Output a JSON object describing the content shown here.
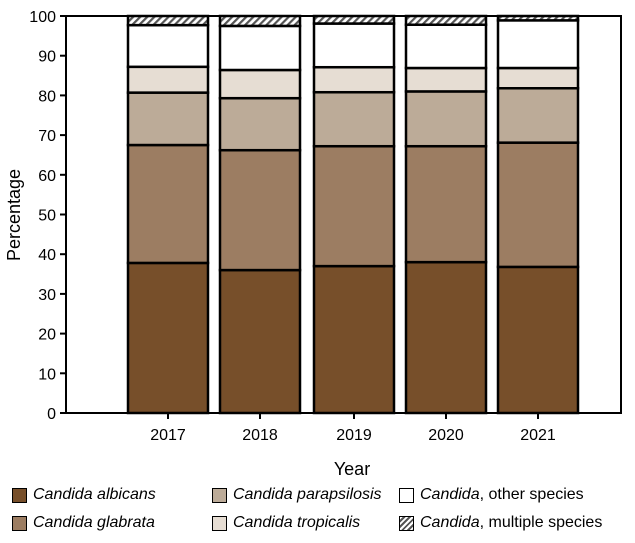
{
  "chart_data": {
    "type": "bar",
    "stacked": true,
    "xlabel": "Year",
    "ylabel": "Percentage",
    "ylim": [
      0,
      100
    ],
    "yticks": [
      0,
      10,
      20,
      30,
      40,
      50,
      60,
      70,
      80,
      90,
      100
    ],
    "categories": [
      "2017",
      "2018",
      "2019",
      "2020",
      "2021"
    ],
    "legend_position": "bottom",
    "grid": false,
    "series": [
      {
        "name": "Candida albicans",
        "name_italic": "Candida albicans",
        "name_rest": "",
        "color": "#774f2a",
        "values": [
          37.8,
          36.0,
          37.0,
          38.0,
          36.8
        ]
      },
      {
        "name": "Candida glabrata",
        "name_italic": "Candida glabrata",
        "name_rest": "",
        "color": "#9c7d62",
        "values": [
          29.7,
          30.2,
          30.2,
          29.2,
          31.3
        ]
      },
      {
        "name": "Candida parapsilosis",
        "name_italic": "Candida parapsilosis",
        "name_rest": "",
        "color": "#bcab98",
        "values": [
          13.2,
          13.1,
          13.6,
          13.8,
          13.7
        ]
      },
      {
        "name": "Candida tropicalis",
        "name_italic": "Candida tropicalis",
        "name_rest": "",
        "color": "#e6ddd3",
        "values": [
          6.5,
          7.1,
          6.3,
          5.9,
          5.1
        ]
      },
      {
        "name": "Candida, other species",
        "name_italic": "Candida",
        "name_rest": ", other species",
        "color": "#ffffff",
        "values": [
          10.5,
          11.1,
          11.0,
          10.9,
          12.0
        ]
      },
      {
        "name": "Candida, multiple species",
        "name_italic": "Candida",
        "name_rest": ", multiple species",
        "color": "hatched",
        "values": [
          2.3,
          2.5,
          1.9,
          2.2,
          1.1
        ]
      }
    ]
  }
}
